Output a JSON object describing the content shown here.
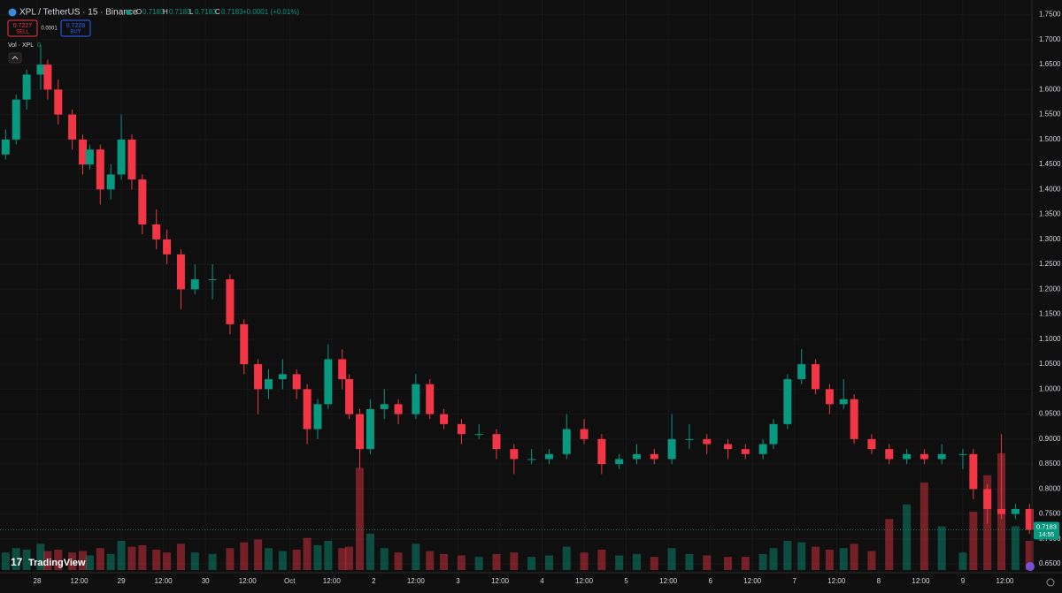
{
  "chart_data": {
    "type": "candlestick",
    "header": {
      "symbol": "XPL / TetherUS · 15 · Binance",
      "o_label": "O",
      "open": 0.7183,
      "h_label": "H",
      "high": 0.7183,
      "l_label": "L",
      "low": 0.7183,
      "c_label": "C",
      "close": 0.7183,
      "change": "+0.0001 (+0.01%)"
    },
    "trade": {
      "sell_price": 0.7227,
      "sell_label": "SELL",
      "spread": 0.0001,
      "buy_price": 0.7228,
      "buy_label": "BUY"
    },
    "volume_legend": {
      "label": "Vol · XPL",
      "value": 0
    },
    "brand": "TradingView",
    "last_price": 0.7183,
    "countdown": "14:55",
    "up_color": "#089981",
    "down_color": "#f23645",
    "x": [
      -9,
      -6,
      -3,
      1,
      3,
      6,
      10,
      13,
      15,
      18,
      21,
      24,
      27,
      30,
      34,
      37,
      41,
      45,
      50,
      55,
      59,
      63,
      66,
      70,
      74,
      77,
      80,
      83,
      87,
      89,
      92,
      95,
      99,
      103,
      108,
      112,
      116,
      121,
      126,
      131,
      136,
      141,
      146,
      151,
      156,
      161,
      166,
      171,
      176,
      181,
      186,
      191,
      197,
      202,
      207,
      210,
      214,
      218,
      222,
      226,
      230,
      233,
      238,
      243,
      248,
      253,
      258,
      264,
      267,
      271,
      275,
      279,
      283
    ],
    "open": [
      1.47,
      1.5,
      1.58,
      1.63,
      1.65,
      1.6,
      1.55,
      1.5,
      1.45,
      1.48,
      1.4,
      1.43,
      1.5,
      1.42,
      1.33,
      1.3,
      1.27,
      1.2,
      1.22,
      1.22,
      1.13,
      1.05,
      1.0,
      1.02,
      1.03,
      1.0,
      0.92,
      0.97,
      1.06,
      1.02,
      0.95,
      0.88,
      0.96,
      0.97,
      0.95,
      1.01,
      0.95,
      0.93,
      0.91,
      0.91,
      0.88,
      0.86,
      0.86,
      0.87,
      0.92,
      0.9,
      0.85,
      0.86,
      0.87,
      0.86,
      0.9,
      0.9,
      0.89,
      0.88,
      0.87,
      0.89,
      0.93,
      1.02,
      1.05,
      1.0,
      0.97,
      0.98,
      0.9,
      0.88,
      0.86,
      0.87,
      0.86,
      0.87,
      0.87,
      0.8,
      0.76,
      0.75,
      0.76
    ],
    "high": [
      1.52,
      1.59,
      1.64,
      1.69,
      1.66,
      1.62,
      1.56,
      1.51,
      1.49,
      1.49,
      1.45,
      1.55,
      1.51,
      1.43,
      1.36,
      1.32,
      1.28,
      1.25,
      1.25,
      1.23,
      1.14,
      1.06,
      1.04,
      1.06,
      1.04,
      1.01,
      0.98,
      1.09,
      1.08,
      1.03,
      0.96,
      0.98,
      1.0,
      0.98,
      1.03,
      1.02,
      0.96,
      0.94,
      0.93,
      0.92,
      0.89,
      0.88,
      0.88,
      0.95,
      0.94,
      0.91,
      0.87,
      0.89,
      0.88,
      0.95,
      0.93,
      0.91,
      0.9,
      0.89,
      0.9,
      0.94,
      1.03,
      1.08,
      1.06,
      1.01,
      1.02,
      0.99,
      0.91,
      0.89,
      0.88,
      0.88,
      0.89,
      0.88,
      0.88,
      0.81,
      0.91,
      0.77,
      0.77
    ],
    "low": [
      1.46,
      1.49,
      1.56,
      1.6,
      1.58,
      1.53,
      1.48,
      1.43,
      1.44,
      1.37,
      1.38,
      1.42,
      1.4,
      1.31,
      1.28,
      1.25,
      1.16,
      1.19,
      1.18,
      1.11,
      1.03,
      0.95,
      0.98,
      1.0,
      0.98,
      0.89,
      0.9,
      0.96,
      1.0,
      0.94,
      0.84,
      0.87,
      0.94,
      0.93,
      0.94,
      0.94,
      0.92,
      0.89,
      0.9,
      0.86,
      0.83,
      0.85,
      0.85,
      0.86,
      0.89,
      0.83,
      0.84,
      0.85,
      0.85,
      0.85,
      0.88,
      0.87,
      0.86,
      0.86,
      0.86,
      0.88,
      0.92,
      1.01,
      0.99,
      0.95,
      0.96,
      0.89,
      0.87,
      0.85,
      0.85,
      0.85,
      0.85,
      0.84,
      0.78,
      0.73,
      0.74,
      0.74,
      0.71
    ],
    "close": [
      1.5,
      1.58,
      1.63,
      1.65,
      1.6,
      1.55,
      1.5,
      1.45,
      1.48,
      1.4,
      1.43,
      1.5,
      1.42,
      1.33,
      1.3,
      1.27,
      1.2,
      1.22,
      1.22,
      1.13,
      1.05,
      1.0,
      1.02,
      1.03,
      1.0,
      0.92,
      0.97,
      1.06,
      1.02,
      0.95,
      0.88,
      0.96,
      0.97,
      0.95,
      1.01,
      0.95,
      0.93,
      0.91,
      0.91,
      0.88,
      0.86,
      0.86,
      0.87,
      0.92,
      0.9,
      0.85,
      0.86,
      0.87,
      0.86,
      0.9,
      0.9,
      0.89,
      0.88,
      0.87,
      0.89,
      0.93,
      1.02,
      1.05,
      1.0,
      0.97,
      0.98,
      0.9,
      0.88,
      0.86,
      0.87,
      0.86,
      0.87,
      0.87,
      0.8,
      0.76,
      0.75,
      0.76,
      0.7183
    ],
    "volume": [
      120,
      150,
      140,
      180,
      130,
      140,
      120,
      130,
      100,
      150,
      110,
      200,
      160,
      170,
      140,
      120,
      180,
      120,
      110,
      150,
      190,
      210,
      150,
      130,
      140,
      220,
      170,
      200,
      150,
      160,
      700,
      250,
      150,
      120,
      180,
      130,
      110,
      100,
      90,
      110,
      120,
      90,
      100,
      160,
      120,
      140,
      100,
      110,
      90,
      150,
      110,
      100,
      90,
      90,
      110,
      150,
      200,
      190,
      160,
      140,
      150,
      180,
      130,
      350,
      450,
      600,
      300,
      120,
      400,
      650,
      800,
      300,
      200
    ],
    "vlim": [
      0,
      1000
    ],
    "xlim": [
      -10.6,
      283.7
    ],
    "xticks": [
      {
        "value": 0,
        "label": "28"
      },
      {
        "value": 12,
        "label": "12:00"
      },
      {
        "value": 24,
        "label": "29"
      },
      {
        "value": 36,
        "label": "12:00"
      },
      {
        "value": 48,
        "label": "30"
      },
      {
        "value": 60,
        "label": "12:00"
      },
      {
        "value": 72,
        "label": "Oct"
      },
      {
        "value": 84,
        "label": "12:00"
      },
      {
        "value": 96,
        "label": "2"
      },
      {
        "value": 108,
        "label": "12:00"
      },
      {
        "value": 120,
        "label": "3"
      },
      {
        "value": 132,
        "label": "12:00"
      },
      {
        "value": 144,
        "label": "4"
      },
      {
        "value": 156,
        "label": "12:00"
      },
      {
        "value": 168,
        "label": "5"
      },
      {
        "value": 180,
        "label": "12:00"
      },
      {
        "value": 192,
        "label": "6"
      },
      {
        "value": 204,
        "label": "12:00"
      },
      {
        "value": 216,
        "label": "7"
      },
      {
        "value": 228,
        "label": "12:00"
      },
      {
        "value": 240,
        "label": "8"
      },
      {
        "value": 252,
        "label": "12:00"
      },
      {
        "value": 264,
        "label": "9"
      },
      {
        "value": 276,
        "label": "12:00"
      }
    ],
    "ylim": [
      0.6325,
      1.7794
    ],
    "yticks": [
      {
        "value": 0.65,
        "label": "0.6500"
      },
      {
        "value": 0.7,
        "label": "0.7000"
      },
      {
        "value": 0.75,
        "label": "0.7500"
      },
      {
        "value": 0.8,
        "label": "0.8000"
      },
      {
        "value": 0.85,
        "label": "0.8500"
      },
      {
        "value": 0.9,
        "label": "0.9000"
      },
      {
        "value": 0.95,
        "label": "0.9500"
      },
      {
        "value": 1.0,
        "label": "1.0000"
      },
      {
        "value": 1.05,
        "label": "1.0500"
      },
      {
        "value": 1.1,
        "label": "1.1000"
      },
      {
        "value": 1.15,
        "label": "1.1500"
      },
      {
        "value": 1.2,
        "label": "1.2000"
      },
      {
        "value": 1.25,
        "label": "1.2500"
      },
      {
        "value": 1.3,
        "label": "1.3000"
      },
      {
        "value": 1.35,
        "label": "1.3500"
      },
      {
        "value": 1.4,
        "label": "1.4000"
      },
      {
        "value": 1.45,
        "label": "1.4500"
      },
      {
        "value": 1.5,
        "label": "1.5000"
      },
      {
        "value": 1.55,
        "label": "1.5500"
      },
      {
        "value": 1.6,
        "label": "1.6000"
      },
      {
        "value": 1.65,
        "label": "1.6500"
      },
      {
        "value": 1.7,
        "label": "1.7000"
      },
      {
        "value": 1.75,
        "label": "1.7500"
      }
    ],
    "grid": true
  }
}
